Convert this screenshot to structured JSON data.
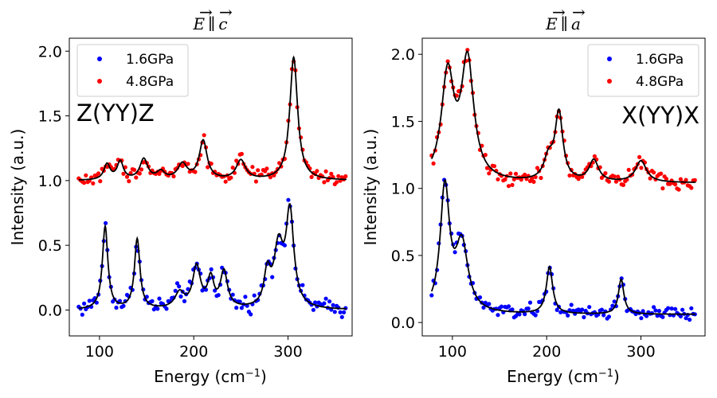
{
  "chart_data": [
    {
      "type": "scatter",
      "title": "E ∥ c",
      "title_symbols": [
        "E",
        "c"
      ],
      "annotation": "Z(YY)Z",
      "xlabel": "Energy (cm",
      "xlabel_sup": "−1",
      "xlabel_close": ")",
      "ylabel": "Intensity (a.u.)",
      "xlim": [
        68,
        368
      ],
      "ylim": [
        -0.2,
        2.1
      ],
      "xticks": [
        100,
        200,
        300
      ],
      "yticks": [
        0.0,
        0.5,
        1.0,
        1.5,
        2.0
      ],
      "xtick_labels": [
        "100",
        "200",
        "300"
      ],
      "ytick_labels": [
        "0.0",
        "0.5",
        "1.0",
        "1.5",
        "2.0"
      ],
      "legend_position": "top-left",
      "series": [
        {
          "name": "1.6GPa",
          "color": "#0000ff",
          "baseline": 0.0,
          "x_range": [
            78,
            362
          ],
          "peaks": [
            [
              106,
              0.64,
              3.5
            ],
            [
              140,
              0.54,
              3.5
            ],
            [
              185,
              0.12,
              6
            ],
            [
              203,
              0.32,
              5
            ],
            [
              218,
              0.22,
              4
            ],
            [
              232,
              0.28,
              4.5
            ],
            [
              278,
              0.25,
              4
            ],
            [
              290,
              0.45,
              6
            ],
            [
              302,
              0.72,
              5
            ]
          ],
          "noise": 0.05
        },
        {
          "name": "4.8GPa",
          "color": "#ff0000",
          "baseline": 1.0,
          "x_range": [
            78,
            362
          ],
          "peaks": [
            [
              108,
              0.12,
              4
            ],
            [
              122,
              0.14,
              4
            ],
            [
              147,
              0.16,
              5
            ],
            [
              165,
              0.06,
              5
            ],
            [
              188,
              0.12,
              6
            ],
            [
              210,
              0.3,
              5
            ],
            [
              250,
              0.15,
              6
            ],
            [
              306,
              0.95,
              5
            ]
          ],
          "noise": 0.04
        }
      ]
    },
    {
      "type": "scatter",
      "title": "E ∥ a",
      "title_symbols": [
        "E",
        "a"
      ],
      "annotation": "X(YY)X",
      "xlabel": "Energy (cm",
      "xlabel_sup": "−1",
      "xlabel_close": ")",
      "ylabel": "Intensity (a.u.)",
      "xlim": [
        68,
        368
      ],
      "ylim": [
        -0.1,
        2.12
      ],
      "xticks": [
        100,
        200,
        300
      ],
      "yticks": [
        0.0,
        0.5,
        1.0,
        1.5,
        2.0
      ],
      "xtick_labels": [
        "100",
        "200",
        "300"
      ],
      "ytick_labels": [
        "0.0",
        "0.5",
        "1.0",
        "1.5",
        "2.0"
      ],
      "legend_position": "top-right",
      "series": [
        {
          "name": "1.6GPa",
          "color": "#0000ff",
          "baseline": 0.06,
          "x_range": [
            78,
            358
          ],
          "peaks": [
            [
              92,
              0.92,
              6
            ],
            [
              110,
              0.5,
              8
            ],
            [
              203,
              0.35,
              4
            ],
            [
              279,
              0.26,
              3.5
            ]
          ],
          "noise": 0.04
        },
        {
          "name": "4.8GPa",
          "color": "#ff0000",
          "baseline": 1.04,
          "x_range": [
            78,
            358
          ],
          "peaks": [
            [
              95,
              0.78,
              8
            ],
            [
              116,
              0.88,
              8
            ],
            [
              202,
              0.16,
              6
            ],
            [
              213,
              0.5,
              5
            ],
            [
              250,
              0.16,
              6
            ],
            [
              300,
              0.16,
              7
            ]
          ],
          "noise": 0.04
        }
      ]
    }
  ]
}
